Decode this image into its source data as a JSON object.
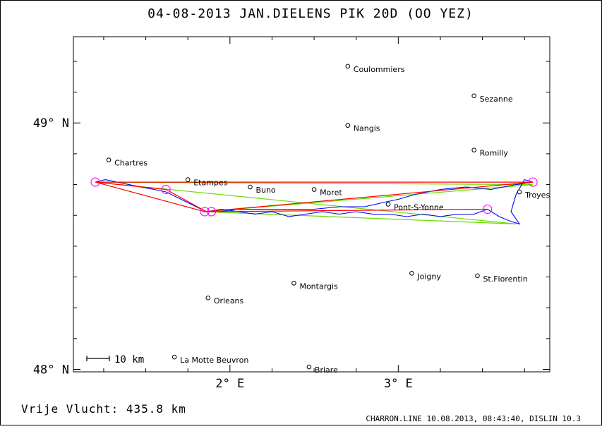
{
  "header": {
    "title": "04-08-2013    JAN.DIELENS    PIK 20D (OO YEZ)"
  },
  "footer": {
    "distance_text": "Vrije Vlucht:  435.8 km",
    "generator_text": "CHARRON.LINE 10.08.2013, 08:43:40, DISLIN 10.3"
  },
  "scale_bar": {
    "label": "10 km"
  },
  "colors": {
    "track": "#0000ff",
    "route": "#ff0000",
    "triangle": "#66dd00",
    "turnpoint": "#ff00ff",
    "axis": "#000000"
  },
  "chart_data": {
    "type": "scatter",
    "title": "04-08-2013    JAN.DIELENS    PIK 20D (OO YEZ)",
    "xlabel": "",
    "ylabel": "",
    "xlim": [
      1.07,
      3.9
    ],
    "ylim": [
      47.99,
      49.35
    ],
    "x_ticks": [
      {
        "value": 2,
        "label": "2° E"
      },
      {
        "value": 3,
        "label": "3° E"
      }
    ],
    "y_ticks": [
      {
        "value": 48,
        "label": "48° N"
      },
      {
        "value": 49,
        "label": "49° N"
      }
    ],
    "towns": [
      {
        "name": "Coulommiers",
        "lon": 2.7,
        "lat": 49.23
      },
      {
        "name": "Sezanne",
        "lon": 3.45,
        "lat": 49.11
      },
      {
        "name": "Nangis",
        "lon": 2.7,
        "lat": 48.99
      },
      {
        "name": "Chartres",
        "lon": 1.28,
        "lat": 48.85
      },
      {
        "name": "Romilly",
        "lon": 3.45,
        "lat": 48.89
      },
      {
        "name": "Etampes",
        "lon": 1.75,
        "lat": 48.77
      },
      {
        "name": "Buno",
        "lon": 2.12,
        "lat": 48.74
      },
      {
        "name": "Moret",
        "lon": 2.5,
        "lat": 48.73
      },
      {
        "name": "Troyes",
        "lon": 3.72,
        "lat": 48.72
      },
      {
        "name": "Pont-S-Yonne",
        "lon": 2.94,
        "lat": 48.67
      },
      {
        "name": "Joigny",
        "lon": 3.08,
        "lat": 48.39
      },
      {
        "name": "St.Florentin",
        "lon": 3.47,
        "lat": 48.38
      },
      {
        "name": "Montargis",
        "lon": 2.38,
        "lat": 48.35
      },
      {
        "name": "Orleans",
        "lon": 1.87,
        "lat": 48.29
      },
      {
        "name": "La Motte Beuvron",
        "lon": 1.67,
        "lat": 48.05
      },
      {
        "name": "Briare",
        "lon": 2.47,
        "lat": 48.01
      }
    ],
    "route_red": [
      {
        "lon": 1.2,
        "lat": 48.76
      },
      {
        "lon": 1.85,
        "lat": 48.64
      },
      {
        "lon": 3.8,
        "lat": 48.76
      },
      {
        "lon": 1.2,
        "lat": 48.76
      },
      {
        "lon": 1.62,
        "lat": 48.73
      },
      {
        "lon": 1.86,
        "lat": 48.64
      },
      {
        "lon": 3.53,
        "lat": 48.65
      }
    ],
    "triangle_green": [
      {
        "lon": 1.2,
        "lat": 48.76
      },
      {
        "lon": 3.8,
        "lat": 48.75
      },
      {
        "lon": 1.85,
        "lat": 48.64
      },
      {
        "lon": 3.7,
        "lat": 48.59
      },
      {
        "lon": 1.2,
        "lat": 48.76
      }
    ],
    "turnpoints": [
      {
        "lon": 1.2,
        "lat": 48.76
      },
      {
        "lon": 1.62,
        "lat": 48.73
      },
      {
        "lon": 1.85,
        "lat": 48.64
      },
      {
        "lon": 1.89,
        "lat": 48.64
      },
      {
        "lon": 3.53,
        "lat": 48.65
      },
      {
        "lon": 3.8,
        "lat": 48.76
      }
    ],
    "track_blue": [
      {
        "lon": 1.2,
        "lat": 48.76
      },
      {
        "lon": 1.26,
        "lat": 48.77
      },
      {
        "lon": 1.33,
        "lat": 48.76
      },
      {
        "lon": 1.4,
        "lat": 48.75
      },
      {
        "lon": 1.47,
        "lat": 48.74
      },
      {
        "lon": 1.55,
        "lat": 48.73
      },
      {
        "lon": 1.62,
        "lat": 48.72
      },
      {
        "lon": 1.68,
        "lat": 48.7
      },
      {
        "lon": 1.74,
        "lat": 48.68
      },
      {
        "lon": 1.8,
        "lat": 48.66
      },
      {
        "lon": 1.86,
        "lat": 48.64
      },
      {
        "lon": 1.95,
        "lat": 48.65
      },
      {
        "lon": 2.05,
        "lat": 48.64
      },
      {
        "lon": 2.15,
        "lat": 48.63
      },
      {
        "lon": 2.25,
        "lat": 48.64
      },
      {
        "lon": 2.35,
        "lat": 48.62
      },
      {
        "lon": 2.45,
        "lat": 48.63
      },
      {
        "lon": 2.55,
        "lat": 48.64
      },
      {
        "lon": 2.65,
        "lat": 48.63
      },
      {
        "lon": 2.75,
        "lat": 48.64
      },
      {
        "lon": 2.85,
        "lat": 48.63
      },
      {
        "lon": 2.95,
        "lat": 48.63
      },
      {
        "lon": 3.05,
        "lat": 48.62
      },
      {
        "lon": 3.15,
        "lat": 48.63
      },
      {
        "lon": 3.25,
        "lat": 48.62
      },
      {
        "lon": 3.35,
        "lat": 48.63
      },
      {
        "lon": 3.45,
        "lat": 48.63
      },
      {
        "lon": 3.53,
        "lat": 48.65
      },
      {
        "lon": 3.6,
        "lat": 48.62
      },
      {
        "lon": 3.67,
        "lat": 48.6
      },
      {
        "lon": 3.72,
        "lat": 48.59
      },
      {
        "lon": 3.67,
        "lat": 48.64
      },
      {
        "lon": 3.7,
        "lat": 48.71
      },
      {
        "lon": 3.75,
        "lat": 48.77
      },
      {
        "lon": 3.8,
        "lat": 48.76
      },
      {
        "lon": 3.7,
        "lat": 48.75
      },
      {
        "lon": 3.55,
        "lat": 48.73
      },
      {
        "lon": 3.4,
        "lat": 48.74
      },
      {
        "lon": 3.25,
        "lat": 48.73
      },
      {
        "lon": 3.1,
        "lat": 48.71
      },
      {
        "lon": 3.0,
        "lat": 48.69
      },
      {
        "lon": 2.93,
        "lat": 48.68
      },
      {
        "lon": 2.8,
        "lat": 48.66
      },
      {
        "lon": 2.65,
        "lat": 48.66
      },
      {
        "lon": 2.5,
        "lat": 48.65
      },
      {
        "lon": 2.35,
        "lat": 48.65
      },
      {
        "lon": 2.2,
        "lat": 48.65
      },
      {
        "lon": 2.05,
        "lat": 48.65
      },
      {
        "lon": 1.93,
        "lat": 48.64
      },
      {
        "lon": 1.89,
        "lat": 48.64
      }
    ]
  }
}
